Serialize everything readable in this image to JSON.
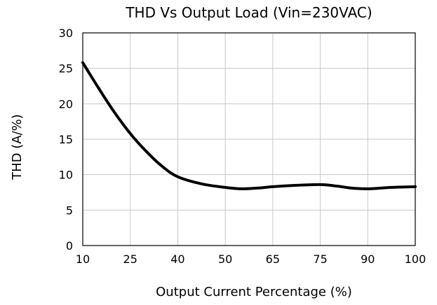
{
  "chart_data": {
    "type": "line",
    "title": "THD Vs Output Load (Vin=230VAC)",
    "xlabel": "Output Current Percentage (%)",
    "ylabel": "THD (A/%)",
    "x_ticks": [
      "10",
      "25",
      "40",
      "50",
      "65",
      "75",
      "90",
      "100"
    ],
    "y_ticks": [
      "0",
      "5",
      "10",
      "15",
      "20",
      "25",
      "30"
    ],
    "ylim": [
      0,
      30
    ],
    "grid": true,
    "line_color": "#000000",
    "grid_color": "#c8c8c8",
    "series": [
      {
        "x": [
          "10",
          "15",
          "20",
          "25",
          "30",
          "35",
          "40",
          "45",
          "50",
          "55",
          "60",
          "65",
          "70",
          "75",
          "80",
          "85",
          "90",
          "95",
          "100"
        ],
        "y": [
          25.8,
          22.2,
          18.8,
          15.8,
          13.3,
          11.2,
          9.7,
          8.7,
          8.2,
          8.0,
          8.1,
          8.3,
          8.5,
          8.6,
          8.4,
          8.1,
          8.0,
          8.2,
          8.3
        ]
      }
    ]
  }
}
